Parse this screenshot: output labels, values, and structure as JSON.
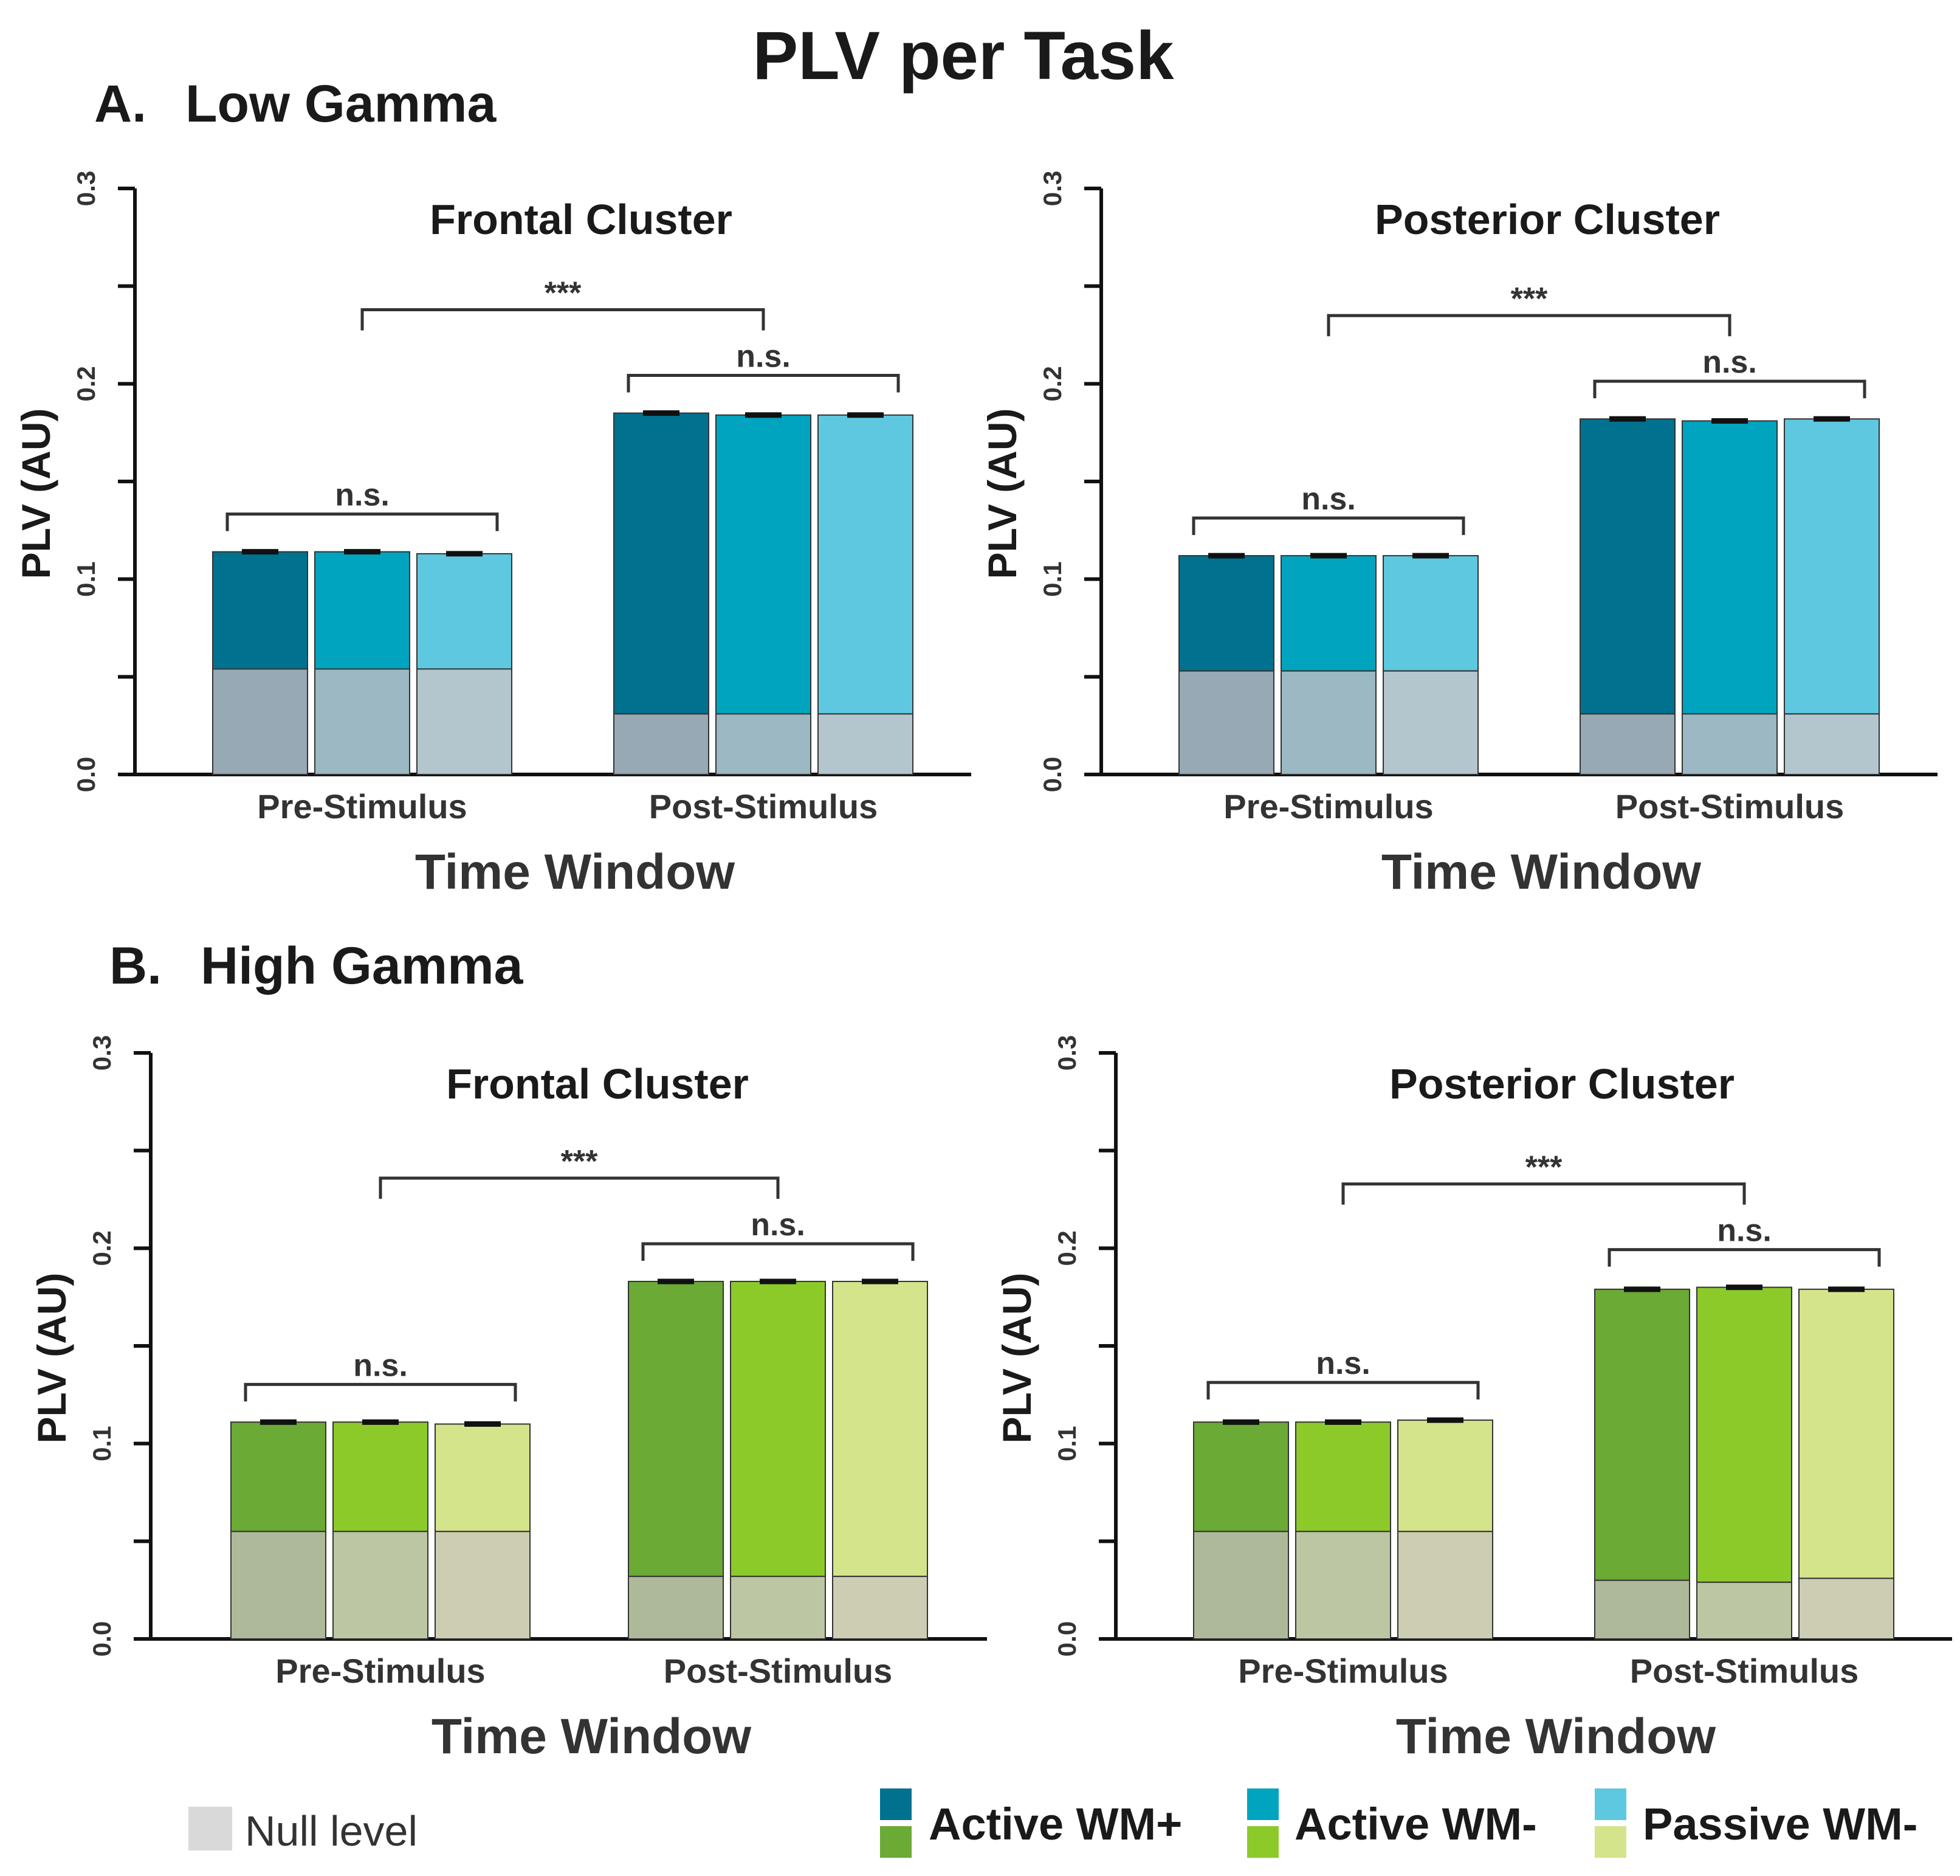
{
  "figure": {
    "title": "PLV per Task",
    "sections": [
      {
        "label": "A.",
        "title": "Low Gamma"
      },
      {
        "label": "B.",
        "title": "High Gamma"
      }
    ]
  },
  "legend": {
    "null_label": "Null level",
    "null_color": "#d9d9d9",
    "items": [
      {
        "label": "Active WM+",
        "color_low": "#00728f",
        "color_high": "#6aaa35"
      },
      {
        "label": "Active WM-",
        "color_low": "#00a4bf",
        "color_high": "#8cca29"
      },
      {
        "label": "Passive WM-",
        "color_low": "#5ec8e0",
        "color_high": "#d4e48a"
      }
    ]
  },
  "chart_data": [
    {
      "type": "bar",
      "section": "Low Gamma",
      "title": "Frontal Cluster",
      "xlabel": "Time Window",
      "ylabel": "PLV (AU)",
      "ylim": [
        0,
        0.3
      ],
      "yticks": [
        "0.0",
        "0.1",
        "0.2",
        "0.3"
      ],
      "categories": [
        "Pre-Stimulus",
        "Post-Stimulus"
      ],
      "series": [
        {
          "name": "Active WM+",
          "values": [
            0.114,
            0.185
          ],
          "null": [
            0.054,
            0.031
          ],
          "color": "#00728f",
          "null_color": "#97a9b4"
        },
        {
          "name": "Active WM-",
          "values": [
            0.114,
            0.184
          ],
          "null": [
            0.054,
            0.031
          ],
          "color": "#00a4bf",
          "null_color": "#9bb8c3"
        },
        {
          "name": "Passive WM-",
          "values": [
            0.113,
            0.184
          ],
          "null": [
            0.054,
            0.031
          ],
          "color": "#5ec8e0",
          "null_color": "#b3c6cd"
        }
      ],
      "annotations": {
        "between": "***",
        "pre": "n.s.",
        "post": "n.s."
      }
    },
    {
      "type": "bar",
      "section": "Low Gamma",
      "title": "Posterior Cluster",
      "xlabel": "Time Window",
      "ylabel": "PLV (AU)",
      "ylim": [
        0,
        0.3
      ],
      "yticks": [
        "0.0",
        "0.1",
        "0.2",
        "0.3"
      ],
      "categories": [
        "Pre-Stimulus",
        "Post-Stimulus"
      ],
      "series": [
        {
          "name": "Active WM+",
          "values": [
            0.112,
            0.182
          ],
          "null": [
            0.053,
            0.031
          ],
          "color": "#00728f",
          "null_color": "#97a9b4"
        },
        {
          "name": "Active WM-",
          "values": [
            0.112,
            0.181
          ],
          "null": [
            0.053,
            0.031
          ],
          "color": "#00a4bf",
          "null_color": "#9bb8c3"
        },
        {
          "name": "Passive WM-",
          "values": [
            0.112,
            0.182
          ],
          "null": [
            0.053,
            0.031
          ],
          "color": "#5ec8e0",
          "null_color": "#b3c6cd"
        }
      ],
      "annotations": {
        "between": "***",
        "pre": "n.s.",
        "post": "n.s."
      }
    },
    {
      "type": "bar",
      "section": "High Gamma",
      "title": "Frontal Cluster",
      "xlabel": "Time Window",
      "ylabel": "PLV (AU)",
      "ylim": [
        0,
        0.3
      ],
      "yticks": [
        "0.0",
        "0.1",
        "0.2",
        "0.3"
      ],
      "categories": [
        "Pre-Stimulus",
        "Post-Stimulus"
      ],
      "series": [
        {
          "name": "Active WM+",
          "values": [
            0.111,
            0.183
          ],
          "null": [
            0.055,
            0.032
          ],
          "color": "#6aaa35",
          "null_color": "#aeb99a"
        },
        {
          "name": "Active WM-",
          "values": [
            0.111,
            0.183
          ],
          "null": [
            0.055,
            0.032
          ],
          "color": "#8cca29",
          "null_color": "#bcc6a2"
        },
        {
          "name": "Passive WM-",
          "values": [
            0.11,
            0.183
          ],
          "null": [
            0.055,
            0.032
          ],
          "color": "#d4e48a",
          "null_color": "#cccdb3"
        }
      ],
      "annotations": {
        "between": "***",
        "pre": "n.s.",
        "post": "n.s."
      }
    },
    {
      "type": "bar",
      "section": "High Gamma",
      "title": "Posterior Cluster",
      "xlabel": "Time Window",
      "ylabel": "PLV (AU)",
      "ylim": [
        0,
        0.3
      ],
      "yticks": [
        "0.0",
        "0.1",
        "0.2",
        "0.3"
      ],
      "categories": [
        "Pre-Stimulus",
        "Post-Stimulus"
      ],
      "series": [
        {
          "name": "Active WM+",
          "values": [
            0.111,
            0.179
          ],
          "null": [
            0.055,
            0.03
          ],
          "color": "#6aaa35",
          "null_color": "#aeb99a"
        },
        {
          "name": "Active WM-",
          "values": [
            0.111,
            0.18
          ],
          "null": [
            0.055,
            0.029
          ],
          "color": "#8cca29",
          "null_color": "#bcc6a2"
        },
        {
          "name": "Passive WM-",
          "values": [
            0.112,
            0.179
          ],
          "null": [
            0.055,
            0.031
          ],
          "color": "#d4e48a",
          "null_color": "#cccdb3"
        }
      ],
      "annotations": {
        "between": "***",
        "pre": "n.s.",
        "post": "n.s."
      }
    }
  ]
}
